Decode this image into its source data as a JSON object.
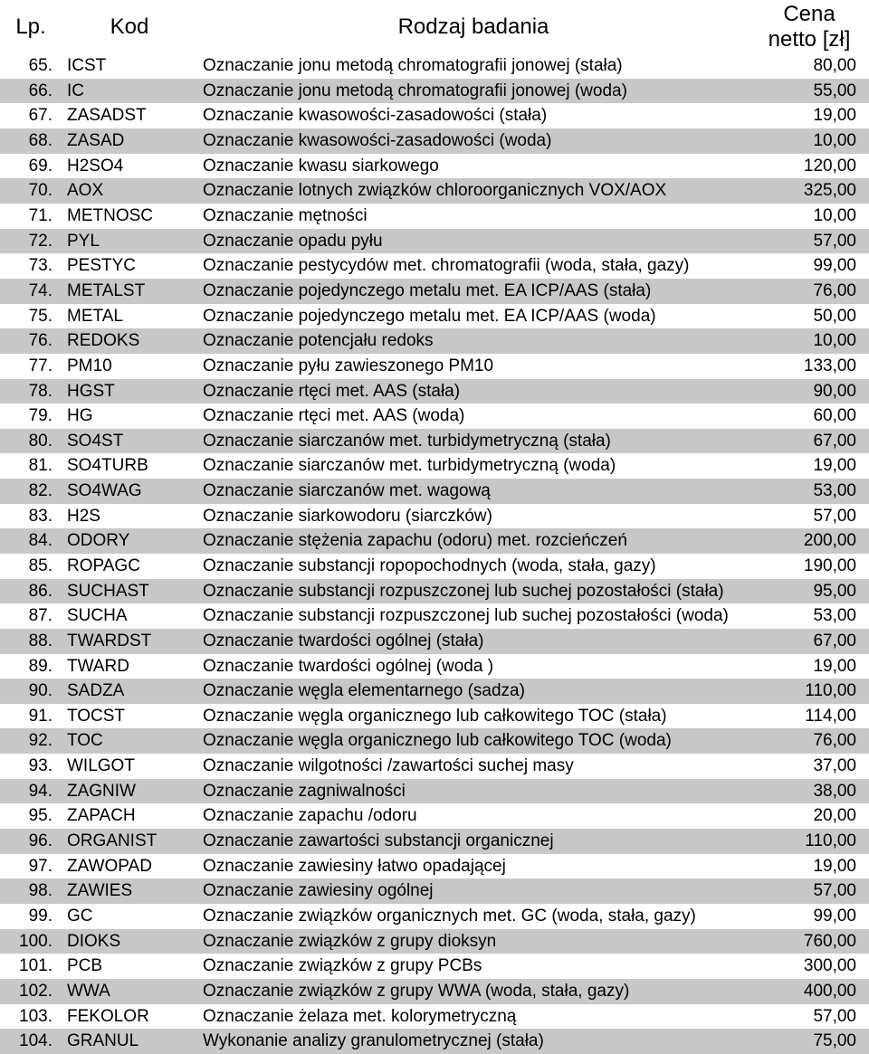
{
  "header": {
    "lp": "Lp.",
    "kod": "Kod",
    "rodzaj": "Rodzaj badania",
    "cena_l1": "Cena",
    "cena_l2": "netto [zł]"
  },
  "rows": [
    {
      "lp": "65.",
      "kod": "ICST",
      "rodzaj": "Oznaczanie jonu metodą chromatografii jonowej (stała)",
      "cena": "80,00"
    },
    {
      "lp": "66.",
      "kod": "IC",
      "rodzaj": "Oznaczanie jonu metodą chromatografii jonowej (woda)",
      "cena": "55,00"
    },
    {
      "lp": "67.",
      "kod": "ZASADST",
      "rodzaj": "Oznaczanie kwasowości-zasadowości (stała)",
      "cena": "19,00"
    },
    {
      "lp": "68.",
      "kod": "ZASAD",
      "rodzaj": "Oznaczanie kwasowości-zasadowości (woda)",
      "cena": "10,00"
    },
    {
      "lp": "69.",
      "kod": "H2SO4",
      "rodzaj": "Oznaczanie kwasu siarkowego",
      "cena": "120,00"
    },
    {
      "lp": "70.",
      "kod": "AOX",
      "rodzaj": "Oznaczanie lotnych związków chloroorganicznych VOX/AOX",
      "cena": "325,00"
    },
    {
      "lp": "71.",
      "kod": "METNOSC",
      "rodzaj": "Oznaczanie mętności",
      "cena": "10,00"
    },
    {
      "lp": "72.",
      "kod": "PYL",
      "rodzaj": "Oznaczanie opadu pyłu",
      "cena": "57,00"
    },
    {
      "lp": "73.",
      "kod": "PESTYC",
      "rodzaj": "Oznaczanie pestycydów met. chromatografii (woda, stała, gazy)",
      "cena": "99,00"
    },
    {
      "lp": "74.",
      "kod": "METALST",
      "rodzaj": "Oznaczanie pojedynczego metalu met. EA ICP/AAS  (stała)",
      "cena": "76,00"
    },
    {
      "lp": "75.",
      "kod": "METAL",
      "rodzaj": "Oznaczanie pojedynczego metalu met. EA ICP/AAS (woda)",
      "cena": "50,00"
    },
    {
      "lp": "76.",
      "kod": "REDOKS",
      "rodzaj": "Oznaczanie potencjału redoks",
      "cena": "10,00"
    },
    {
      "lp": "77.",
      "kod": "PM10",
      "rodzaj": "Oznaczanie pyłu zawieszonego PM10",
      "cena": "133,00"
    },
    {
      "lp": "78.",
      "kod": "HGST",
      "rodzaj": "Oznaczanie rtęci met. AAS (stała)",
      "cena": "90,00"
    },
    {
      "lp": "79.",
      "kod": "HG",
      "rodzaj": "Oznaczanie rtęci met. AAS (woda)",
      "cena": "60,00"
    },
    {
      "lp": "80.",
      "kod": "SO4ST",
      "rodzaj": "Oznaczanie siarczanów met. turbidymetryczną (stała)",
      "cena": "67,00"
    },
    {
      "lp": "81.",
      "kod": "SO4TURB",
      "rodzaj": "Oznaczanie siarczanów met. turbidymetryczną (woda)",
      "cena": "19,00"
    },
    {
      "lp": "82.",
      "kod": "SO4WAG",
      "rodzaj": "Oznaczanie siarczanów met. wagową",
      "cena": "53,00"
    },
    {
      "lp": "83.",
      "kod": "H2S",
      "rodzaj": "Oznaczanie siarkowodoru (siarczków)",
      "cena": "57,00"
    },
    {
      "lp": "84.",
      "kod": "ODORY",
      "rodzaj": "Oznaczanie stężenia zapachu (odoru) met. rozcieńczeń",
      "cena": "200,00"
    },
    {
      "lp": "85.",
      "kod": "ROPAGC",
      "rodzaj": "Oznaczanie substancji ropopochodnych (woda, stała, gazy)",
      "cena": "190,00"
    },
    {
      "lp": "86.",
      "kod": "SUCHAST",
      "rodzaj": "Oznaczanie substancji rozpuszczonej lub suchej pozostałości (stała)",
      "cena": "95,00"
    },
    {
      "lp": "87.",
      "kod": "SUCHA",
      "rodzaj": "Oznaczanie substancji rozpuszczonej lub suchej pozostałości (woda)",
      "cena": "53,00"
    },
    {
      "lp": "88.",
      "kod": "TWARDST",
      "rodzaj": "Oznaczanie twardości ogólnej (stała)",
      "cena": "67,00"
    },
    {
      "lp": "89.",
      "kod": "TWARD",
      "rodzaj": "Oznaczanie twardości ogólnej (woda )",
      "cena": "19,00"
    },
    {
      "lp": "90.",
      "kod": "SADZA",
      "rodzaj": "Oznaczanie węgla elementarnego (sadza)",
      "cena": "110,00"
    },
    {
      "lp": "91.",
      "kod": "TOCST",
      "rodzaj": "Oznaczanie węgla organicznego lub całkowitego TOC (stała)",
      "cena": "114,00"
    },
    {
      "lp": "92.",
      "kod": "TOC",
      "rodzaj": "Oznaczanie węgla organicznego lub całkowitego TOC (woda)",
      "cena": "76,00"
    },
    {
      "lp": "93.",
      "kod": "WILGOT",
      "rodzaj": "Oznaczanie wilgotności /zawartości suchej masy",
      "cena": "37,00"
    },
    {
      "lp": "94.",
      "kod": "ZAGNIW",
      "rodzaj": "Oznaczanie zagniwalności",
      "cena": "38,00"
    },
    {
      "lp": "95.",
      "kod": "ZAPACH",
      "rodzaj": "Oznaczanie zapachu /odoru",
      "cena": "20,00"
    },
    {
      "lp": "96.",
      "kod": "ORGANIST",
      "rodzaj": "Oznaczanie zawartości substancji organicznej",
      "cena": "110,00"
    },
    {
      "lp": "97.",
      "kod": "ZAWOPAD",
      "rodzaj": "Oznaczanie zawiesiny łatwo opadającej",
      "cena": "19,00"
    },
    {
      "lp": "98.",
      "kod": "ZAWIES",
      "rodzaj": "Oznaczanie zawiesiny ogólnej",
      "cena": "57,00"
    },
    {
      "lp": "99.",
      "kod": "GC",
      "rodzaj": "Oznaczanie związków organicznych met. GC (woda, stała, gazy)",
      "cena": "99,00"
    },
    {
      "lp": "100.",
      "kod": "DIOKS",
      "rodzaj": "Oznaczanie związków z grupy dioksyn",
      "cena": "760,00"
    },
    {
      "lp": "101.",
      "kod": "PCB",
      "rodzaj": "Oznaczanie związków z grupy PCBs",
      "cena": "300,00"
    },
    {
      "lp": "102.",
      "kod": "WWA",
      "rodzaj": "Oznaczanie związków z grupy WWA (woda, stała, gazy)",
      "cena": "400,00"
    },
    {
      "lp": "103.",
      "kod": "FEKOLOR",
      "rodzaj": "Oznaczanie żelaza met. kolorymetryczną",
      "cena": "57,00"
    },
    {
      "lp": "104.",
      "kod": "GRANUL",
      "rodzaj": "Wykonanie analizy granulometrycznej (stała)",
      "cena": "75,00"
    }
  ],
  "style": {
    "row_even_bg": "#c8c8c8",
    "row_odd_bg": "#ffffff",
    "header_fontsize_pt": 18,
    "body_fontsize_pt": 14
  }
}
